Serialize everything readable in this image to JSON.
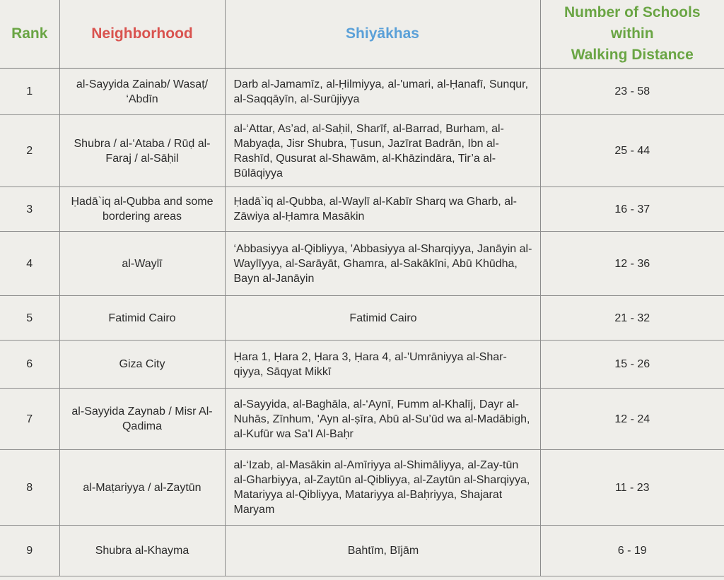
{
  "table": {
    "headers": {
      "rank": "Rank",
      "neighborhood": "Neighborhood",
      "shiyakhas": "Shiyākhas",
      "schools_line1": "Number of Schools",
      "schools_line2": "within",
      "schools_line3": "Walking Distance"
    },
    "colors": {
      "rank_header": "#6aa544",
      "neighborhood_header": "#d9534f",
      "shiyakhas_header": "#5aa0d8",
      "schools_header": "#6aa544",
      "background": "#efeeea"
    },
    "rows": [
      {
        "rank": "1",
        "neighborhood": "al-Sayyida Zainab/ Wasaṭ/ ‘Abdīn",
        "shiyakhas": "Darb al-Jamamīz, al-Ḥilmiyya, al-'umari, al-Ḥanafī, Sunqur, al-Saqqāyīn, al-Surūjiyya",
        "schools": "23 - 58"
      },
      {
        "rank": "2",
        "neighborhood": "Shubra / al-‘Ataba / Rūḍ al-Faraj / al-Sāḥil",
        "shiyakhas": "al-‘Attar, As’ad, al-Saḥil, Sharīf, al-Barrad, Burham, al-Mabyaḍa, Jisr Shubra, Ṭusun, Jazīrat Badrān, Ibn al-Rashīd, Qusurat al-Shawām, al-Khāzindāra, Tir’a al-Būlāqiyya",
        "schools": "25 - 44"
      },
      {
        "rank": "3",
        "neighborhood": "Ḥadā`iq al-Qubba and some bordering areas",
        "shiyakhas": "Ḥadā`iq al-Qubba, al-Waylī al-Kabīr Sharq wa Gharb, al-Zāwiya al-Ḥamra Masākin",
        "schools": "16 - 37"
      },
      {
        "rank": "4",
        "neighborhood": "al-Waylī",
        "shiyakhas": "‘Abbasiyya al-Qibliyya, 'Abbasiyya al-Sharqiyya, Janāyin al-Waylīyya, al-Sarāyāt, Ghamra, al-Sakākīni, Abū Khūdha, Bayn al-Janāyin",
        "schools": "12 - 36"
      },
      {
        "rank": "5",
        "neighborhood": "Fatimid Cairo",
        "shiyakhas": "Fatimid Cairo",
        "schools": "21 - 32"
      },
      {
        "rank": "6",
        "neighborhood": "Giza City",
        "shiyakhas": "Ḥara 1, Ḥara 2, Ḥara 3, Ḥara 4, al-'Umrāniyya al-Shar-qiyya, Sāqyat Mikkī",
        "schools": "15 - 26"
      },
      {
        "rank": "7",
        "neighborhood": "al-Sayyida Zaynab / Misr Al-Qadima",
        "shiyakhas": "al-Sayyida, al-Baghāla, al-‘Aynī, Fumm al-Khalīj, Dayr al-Nuhās, Zīnhum, 'Ayn al-ṣīra, Abū al-Su’ūd wa al-Madābigh, al-Kufūr wa Sa'I Al-Baḥr",
        "schools": "12 - 24"
      },
      {
        "rank": "8",
        "neighborhood": "al-Maṭariyya / al-Zaytūn",
        "shiyakhas": "al-‘Izab, al-Masākin al-Amīriyya al-Shimāliyya, al-Zay-tūn al-Gharbiyya, al-Zaytūn al-Qibliyya, al-Zaytūn al-Sharqiyya, Matariyya al-Qibliyya, Matariyya al-Baḥriyya, Shajarat Maryam",
        "schools": "11 - 23"
      },
      {
        "rank": "9",
        "neighborhood": "Shubra al-Khayma",
        "shiyakhas": "Bahtīm, Bījām",
        "schools": "6 - 19"
      }
    ]
  }
}
